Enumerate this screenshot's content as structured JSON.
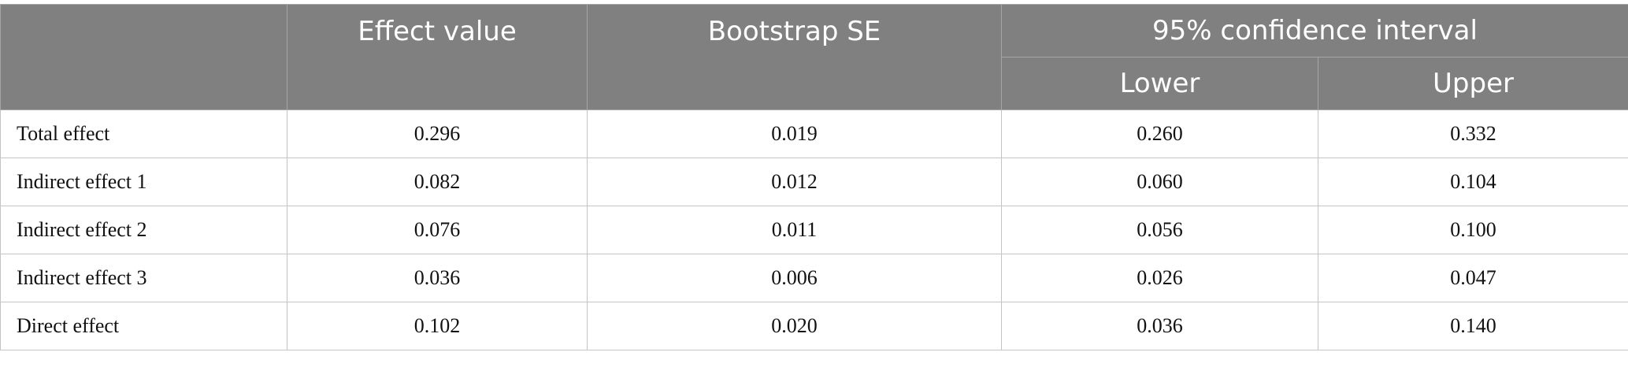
{
  "table": {
    "header": {
      "effect_value": "Effect value",
      "bootstrap_se": "Bootstrap SE",
      "ci": "95% confidence interval",
      "lower": "Lower",
      "upper": "Upper"
    },
    "rows": [
      [
        "Total effect",
        "0.296",
        "0.019",
        "0.260",
        "0.332"
      ],
      [
        "Indirect effect 1",
        "0.082",
        "0.012",
        "0.060",
        "0.104"
      ],
      [
        "Indirect effect 2",
        "0.076",
        "0.011",
        "0.056",
        "0.100"
      ],
      [
        "Indirect effect 3",
        "0.036",
        "0.006",
        "0.026",
        "0.047"
      ],
      [
        "Direct effect",
        "0.102",
        "0.020",
        "0.036",
        "0.140"
      ]
    ]
  }
}
